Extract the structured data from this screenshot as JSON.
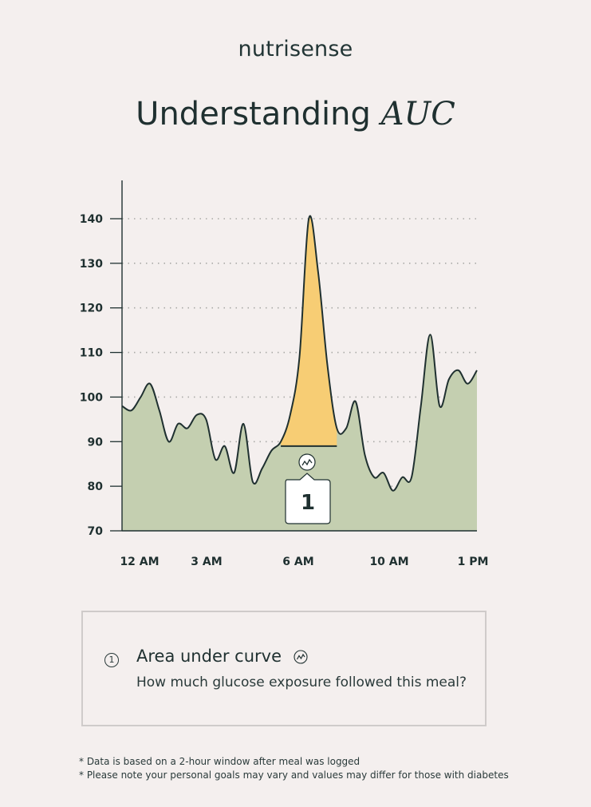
{
  "brand": "nutrisense",
  "title": {
    "main": "Understanding",
    "italic": "AUC"
  },
  "chart_data": {
    "type": "area",
    "title": "",
    "xlabel": "",
    "ylabel": "",
    "ylim": [
      70,
      140
    ],
    "y_ticks": [
      70,
      80,
      90,
      100,
      110,
      120,
      130,
      140
    ],
    "x_tick_labels": [
      "12 AM",
      "3 AM",
      "6 AM",
      "10 AM",
      "1 PM"
    ],
    "grid": true,
    "series": [
      {
        "values": [
          98,
          97,
          100,
          103,
          97,
          90,
          94,
          93,
          96,
          95,
          86,
          89,
          83,
          94,
          81,
          84,
          88,
          90,
          96,
          109,
          140,
          128,
          107,
          93,
          93,
          99,
          87,
          82,
          83,
          79,
          82,
          82,
          98,
          114,
          98,
          104,
          106,
          103,
          106
        ]
      }
    ],
    "highlight": {
      "label": "1",
      "baseline": 89,
      "peak": 140,
      "color": "#f7cd74"
    },
    "colors": {
      "area": "#c4cfb0",
      "line": "#1f3030",
      "highlight": "#f7cd74"
    }
  },
  "legend": {
    "number": "1",
    "title": "Area under curve",
    "description": "How much glucose exposure followed this meal?"
  },
  "notes": [
    "* Data is based on a 2-hour window after meal was logged",
    "* Please note your personal goals may vary and values may differ for those with diabetes"
  ]
}
